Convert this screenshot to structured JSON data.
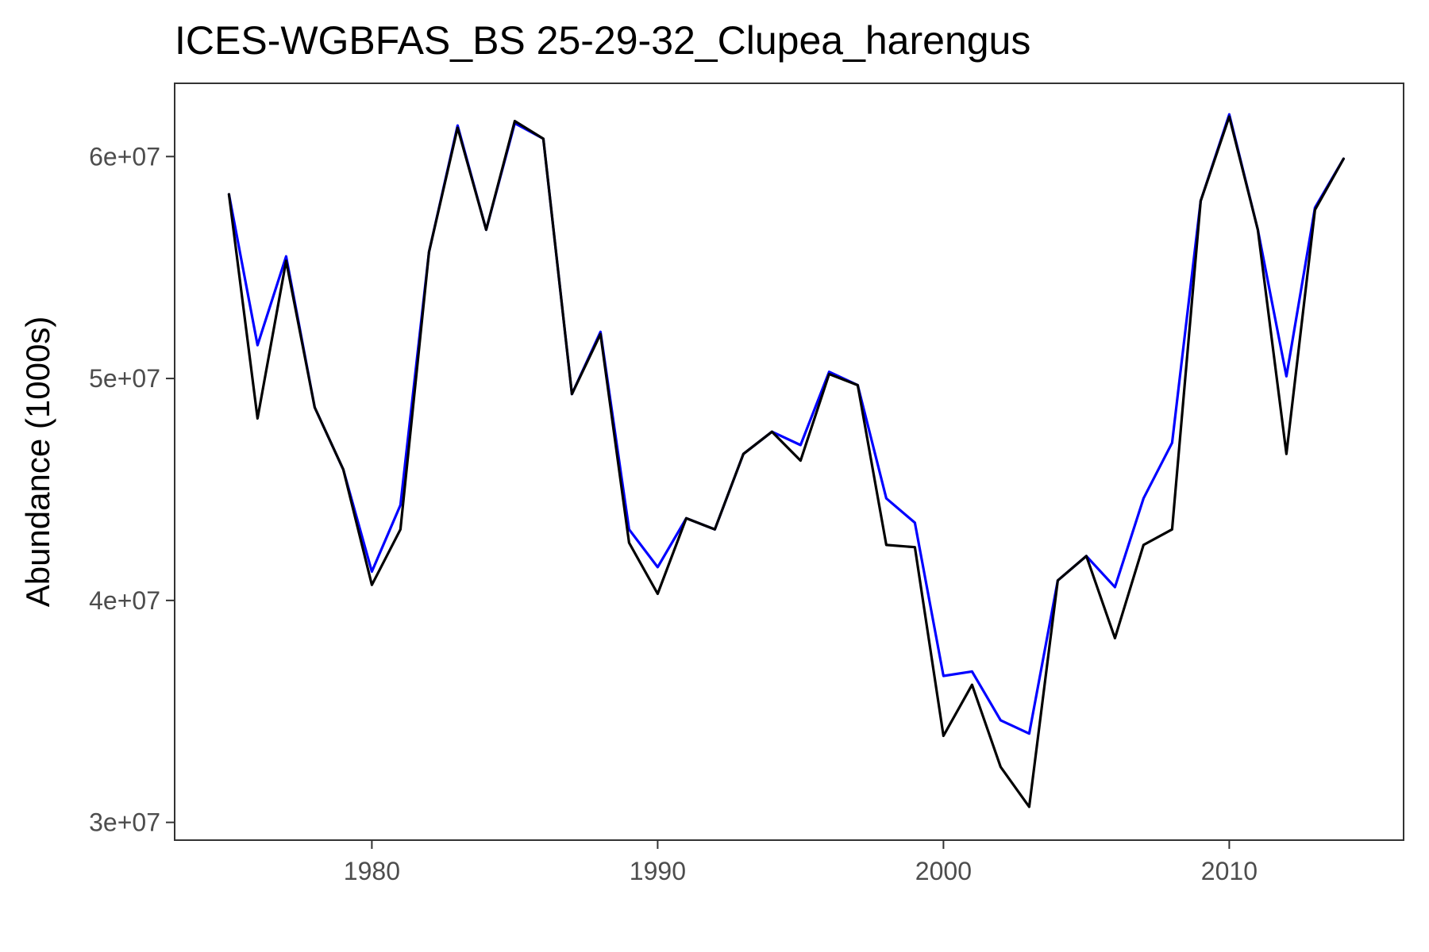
{
  "chart_data": {
    "type": "line",
    "title": "ICES-WGBFAS_BS 25-29-32_Clupea_harengus",
    "xlabel": "",
    "ylabel": "Abundance (1000s)",
    "xlim": [
      1973.1,
      2016.1
    ],
    "ylim": [
      29200000,
      63300000
    ],
    "x_ticks": [
      1980,
      1990,
      2000,
      2010
    ],
    "x_tick_labels": [
      "1980",
      "1990",
      "2000",
      "2010"
    ],
    "y_ticks": [
      30000000,
      40000000,
      50000000,
      60000000
    ],
    "y_tick_labels": [
      "3e+07",
      "4e+07",
      "5e+07",
      "6e+07"
    ],
    "grid": false,
    "legend": "none",
    "x": [
      1975,
      1976,
      1977,
      1978,
      1979,
      1980,
      1981,
      1982,
      1983,
      1984,
      1985,
      1986,
      1987,
      1988,
      1989,
      1990,
      1991,
      1992,
      1993,
      1994,
      1995,
      1996,
      1997,
      1998,
      1999,
      2000,
      2001,
      2002,
      2003,
      2004,
      2005,
      2006,
      2007,
      2008,
      2009,
      2010,
      2011,
      2012,
      2013,
      2014
    ],
    "series": [
      {
        "color": "#0000ff",
        "values": [
          58300000,
          51500000,
          55500000,
          48700000,
          45900000,
          41300000,
          44300000,
          55700000,
          61400000,
          56700000,
          61500000,
          60800000,
          49300000,
          52100000,
          43200000,
          41500000,
          43700000,
          43200000,
          46600000,
          47600000,
          47000000,
          50300000,
          49700000,
          44600000,
          43500000,
          36600000,
          36800000,
          34600000,
          34000000,
          40900000,
          42000000,
          40600000,
          44600000,
          47100000,
          58000000,
          61900000,
          56700000,
          50100000,
          57700000,
          59900000
        ]
      },
      {
        "color": "#000000",
        "values": [
          58300000,
          48200000,
          55300000,
          48700000,
          45900000,
          40700000,
          43200000,
          55700000,
          61300000,
          56700000,
          61600000,
          60800000,
          49300000,
          52000000,
          42600000,
          40300000,
          43700000,
          43200000,
          46600000,
          47600000,
          46300000,
          50200000,
          49700000,
          42500000,
          42400000,
          33900000,
          36200000,
          32500000,
          30700000,
          40900000,
          42000000,
          38300000,
          42500000,
          43200000,
          58000000,
          61800000,
          56700000,
          46600000,
          57600000,
          59900000
        ]
      }
    ]
  }
}
